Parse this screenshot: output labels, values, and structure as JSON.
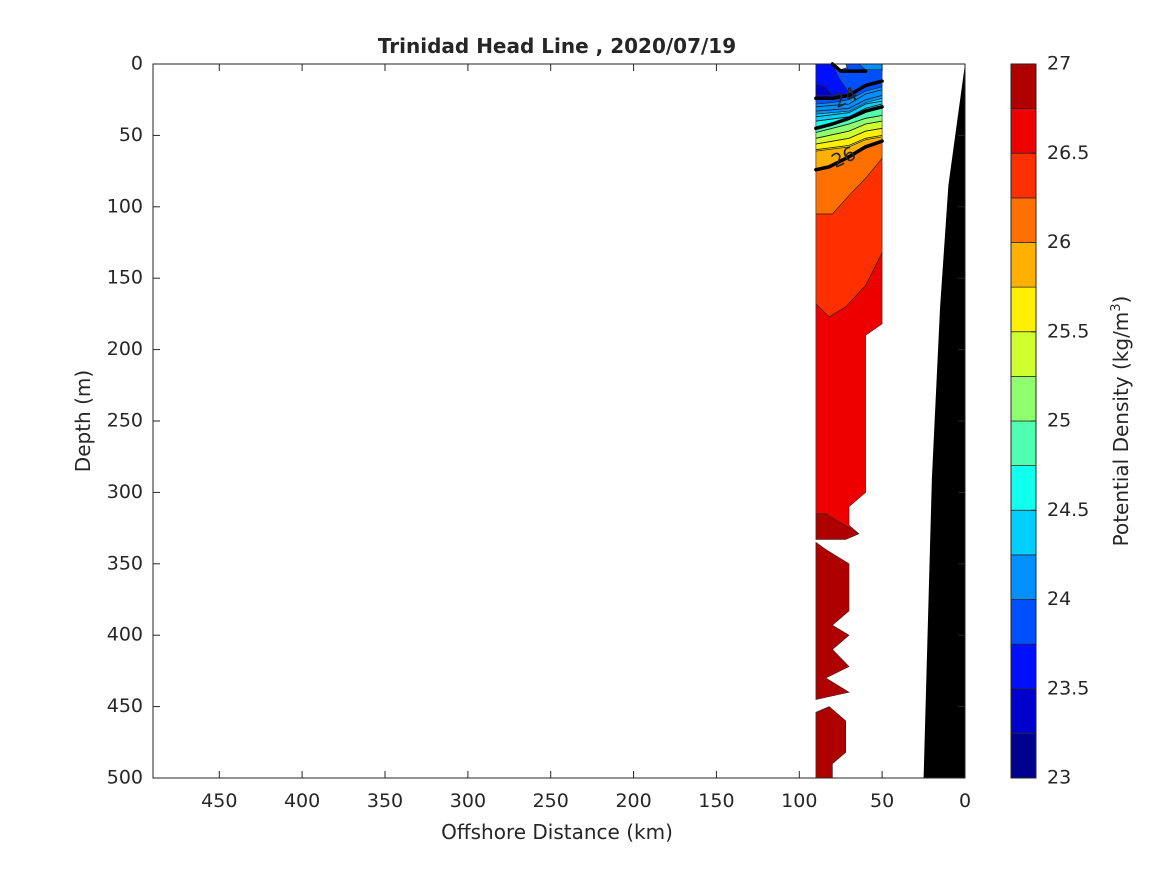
{
  "chart_data": {
    "type": "heatmap",
    "subtype": "filled-contour-section",
    "title": "Trinidad Head Line , 2020/07/19",
    "xlabel": "Offshore Distance (km)",
    "ylabel": "Depth (m)",
    "xlim": [
      490,
      0
    ],
    "ylim": [
      0,
      500
    ],
    "x_reversed": true,
    "y_reversed": true,
    "x_ticks": [
      450,
      400,
      350,
      300,
      250,
      200,
      150,
      100,
      50,
      0
    ],
    "y_ticks": [
      0,
      50,
      100,
      150,
      200,
      250,
      300,
      350,
      400,
      450,
      500
    ],
    "colorbar": {
      "label_main": "Potential Density (kg/m",
      "label_sup": "3",
      "label_end": ")",
      "range": [
        23,
        27
      ],
      "tick_values": [
        23,
        23.5,
        24,
        24.5,
        25,
        25.5,
        26,
        26.5,
        27
      ],
      "tick_labels": [
        "23",
        "23.5",
        "24",
        "24.5",
        "25",
        "25.5",
        "26",
        "26.5",
        "27"
      ],
      "levels": [
        23,
        23.25,
        23.5,
        23.75,
        24,
        24.25,
        24.5,
        24.75,
        25,
        25.25,
        25.5,
        25.75,
        26,
        26.25,
        26.5,
        26.75,
        27
      ],
      "colors": [
        "#00008f",
        "#0000cc",
        "#0010ff",
        "#0050ff",
        "#0090ff",
        "#00cfff",
        "#10ffef",
        "#50ffaf",
        "#90ff6f",
        "#cfff30",
        "#ffef00",
        "#ffb000",
        "#ff7000",
        "#ff3000",
        "#ef0000",
        "#af0000"
      ],
      "colormap": "jet"
    },
    "contour_labels": [
      {
        "value": "24",
        "x": 72,
        "depth": 24
      },
      {
        "value": "26",
        "x": 73,
        "depth": 66
      }
    ],
    "bold_contours": [
      {
        "level": 24,
        "points": [
          [
            90,
            24
          ],
          [
            80,
            24
          ],
          [
            70,
            22
          ],
          [
            60,
            15
          ],
          [
            50,
            12
          ]
        ]
      },
      {
        "level": 24,
        "points": [
          [
            80,
            0
          ],
          [
            75,
            5
          ],
          [
            60,
            5
          ]
        ]
      },
      {
        "level": 25,
        "points": [
          [
            90,
            45
          ],
          [
            80,
            42
          ],
          [
            70,
            38
          ],
          [
            60,
            33
          ],
          [
            50,
            30
          ]
        ]
      },
      {
        "level": 26,
        "points": [
          [
            90,
            74
          ],
          [
            82,
            72
          ],
          [
            70,
            65
          ],
          [
            60,
            58
          ],
          [
            50,
            54
          ]
        ]
      }
    ],
    "thin_contours": [
      [
        [
          90,
          30
        ],
        [
          70,
          28
        ],
        [
          60,
          21
        ],
        [
          50,
          18
        ]
      ],
      [
        [
          90,
          33
        ],
        [
          70,
          31
        ],
        [
          60,
          25
        ],
        [
          50,
          22
        ]
      ],
      [
        [
          90,
          37
        ],
        [
          70,
          34
        ],
        [
          60,
          28
        ],
        [
          50,
          26
        ]
      ],
      [
        [
          90,
          40
        ],
        [
          70,
          37
        ],
        [
          60,
          31
        ],
        [
          50,
          28
        ]
      ],
      [
        [
          90,
          48
        ],
        [
          70,
          42
        ],
        [
          60,
          38
        ],
        [
          50,
          36
        ]
      ],
      [
        [
          90,
          52
        ],
        [
          70,
          47
        ],
        [
          60,
          42
        ],
        [
          50,
          40
        ]
      ],
      [
        [
          90,
          56
        ],
        [
          70,
          52
        ],
        [
          60,
          47
        ],
        [
          50,
          45
        ]
      ],
      [
        [
          90,
          60
        ],
        [
          70,
          57
        ],
        [
          60,
          52
        ],
        [
          50,
          50
        ]
      ]
    ],
    "regions": [
      {
        "level_index": 15,
        "points": [
          [
            90,
            315
          ],
          [
            84,
            315
          ],
          [
            72,
            322
          ],
          [
            64,
            329
          ],
          [
            72,
            333
          ],
          [
            90,
            333
          ]
        ]
      },
      {
        "level_index": 15,
        "points": [
          [
            90,
            335
          ],
          [
            84,
            340
          ],
          [
            70,
            350
          ],
          [
            70,
            383
          ],
          [
            80,
            393
          ],
          [
            70,
            400
          ],
          [
            80,
            410
          ],
          [
            70,
            422
          ],
          [
            84,
            430
          ],
          [
            70,
            440
          ],
          [
            90,
            445
          ]
        ]
      },
      {
        "level_index": 15,
        "points": [
          [
            90,
            454
          ],
          [
            82,
            450
          ],
          [
            72,
            460
          ],
          [
            72,
            482
          ],
          [
            80,
            490
          ],
          [
            80,
            500
          ],
          [
            90,
            500
          ]
        ]
      },
      {
        "level_index": 14,
        "points": [
          [
            90,
            168
          ],
          [
            82,
            177
          ],
          [
            72,
            170
          ],
          [
            60,
            155
          ],
          [
            50,
            132
          ],
          [
            50,
            182
          ],
          [
            60,
            190
          ],
          [
            60,
            300
          ],
          [
            70,
            310
          ],
          [
            70,
            323
          ],
          [
            64,
            329
          ],
          [
            84,
            315
          ],
          [
            90,
            315
          ]
        ]
      },
      {
        "level_index": 13,
        "points": [
          [
            90,
            105
          ],
          [
            80,
            105
          ],
          [
            70,
            92
          ],
          [
            60,
            80
          ],
          [
            50,
            66
          ],
          [
            50,
            132
          ],
          [
            60,
            155
          ],
          [
            72,
            170
          ],
          [
            82,
            177
          ],
          [
            90,
            168
          ]
        ]
      },
      {
        "level_index": 12,
        "points": [
          [
            90,
            75
          ],
          [
            82,
            73
          ],
          [
            70,
            66
          ],
          [
            60,
            59
          ],
          [
            50,
            55
          ],
          [
            50,
            66
          ],
          [
            60,
            80
          ],
          [
            70,
            92
          ],
          [
            80,
            105
          ],
          [
            90,
            105
          ]
        ]
      },
      {
        "level_index": 11,
        "points": [
          [
            90,
            61
          ],
          [
            70,
            58
          ],
          [
            60,
            53
          ],
          [
            50,
            51
          ],
          [
            50,
            55
          ],
          [
            60,
            59
          ],
          [
            70,
            66
          ],
          [
            82,
            73
          ],
          [
            90,
            75
          ]
        ]
      },
      {
        "level_index": 10,
        "points": [
          [
            90,
            56
          ],
          [
            70,
            52
          ],
          [
            60,
            47
          ],
          [
            50,
            45
          ],
          [
            50,
            51
          ],
          [
            60,
            53
          ],
          [
            70,
            58
          ],
          [
            90,
            61
          ]
        ]
      },
      {
        "level_index": 9,
        "points": [
          [
            90,
            52
          ],
          [
            70,
            47
          ],
          [
            60,
            42
          ],
          [
            50,
            40
          ],
          [
            50,
            45
          ],
          [
            60,
            47
          ],
          [
            70,
            52
          ],
          [
            90,
            56
          ]
        ]
      },
      {
        "level_index": 8,
        "points": [
          [
            90,
            48
          ],
          [
            70,
            42
          ],
          [
            60,
            38
          ],
          [
            50,
            36
          ],
          [
            50,
            40
          ],
          [
            60,
            42
          ],
          [
            70,
            47
          ],
          [
            90,
            52
          ]
        ]
      },
      {
        "level_index": 7,
        "points": [
          [
            90,
            44
          ],
          [
            80,
            42
          ],
          [
            70,
            38
          ],
          [
            60,
            33
          ],
          [
            50,
            30
          ],
          [
            50,
            36
          ],
          [
            60,
            38
          ],
          [
            70,
            42
          ],
          [
            90,
            48
          ]
        ]
      },
      {
        "level_index": 6,
        "points": [
          [
            90,
            40
          ],
          [
            70,
            37
          ],
          [
            60,
            31
          ],
          [
            50,
            28
          ],
          [
            50,
            30
          ],
          [
            60,
            33
          ],
          [
            70,
            38
          ],
          [
            80,
            42
          ],
          [
            90,
            44
          ]
        ]
      },
      {
        "level_index": 5,
        "points": [
          [
            90,
            35
          ],
          [
            70,
            33
          ],
          [
            60,
            27
          ],
          [
            50,
            24
          ],
          [
            50,
            28
          ],
          [
            60,
            31
          ],
          [
            70,
            37
          ],
          [
            90,
            40
          ]
        ]
      },
      {
        "level_index": 4,
        "points": [
          [
            90,
            28
          ],
          [
            80,
            27
          ],
          [
            70,
            25
          ],
          [
            60,
            19
          ],
          [
            50,
            16
          ],
          [
            50,
            24
          ],
          [
            60,
            27
          ],
          [
            70,
            33
          ],
          [
            90,
            35
          ]
        ]
      },
      {
        "level_index": 3,
        "points": [
          [
            90,
            0
          ],
          [
            80,
            0
          ],
          [
            75,
            4
          ],
          [
            65,
            0
          ],
          [
            50,
            0
          ],
          [
            50,
            16
          ],
          [
            60,
            19
          ],
          [
            70,
            25
          ],
          [
            80,
            27
          ],
          [
            90,
            28
          ]
        ]
      },
      {
        "level_index": 2,
        "points": [
          [
            90,
            0
          ],
          [
            80,
            0
          ],
          [
            76,
            10
          ],
          [
            70,
            20
          ],
          [
            82,
            24
          ],
          [
            90,
            24
          ]
        ]
      },
      {
        "level_index": 1,
        "points": [
          [
            90,
            14
          ],
          [
            84,
            16
          ],
          [
            80,
            22
          ],
          [
            90,
            22
          ]
        ]
      },
      {
        "level_index": 3,
        "points": [
          [
            72,
            0
          ],
          [
            70,
            6
          ],
          [
            62,
            4
          ],
          [
            60,
            0
          ]
        ]
      },
      {
        "level_index": 4,
        "points": [
          [
            64,
            0
          ],
          [
            60,
            4
          ],
          [
            50,
            4
          ],
          [
            50,
            0
          ]
        ]
      }
    ],
    "bathymetry": {
      "color": "#000000",
      "points": [
        [
          0,
          0
        ],
        [
          10,
          85
        ],
        [
          15,
          170
        ],
        [
          20,
          290
        ],
        [
          25,
          500
        ],
        [
          0,
          500
        ]
      ]
    }
  }
}
